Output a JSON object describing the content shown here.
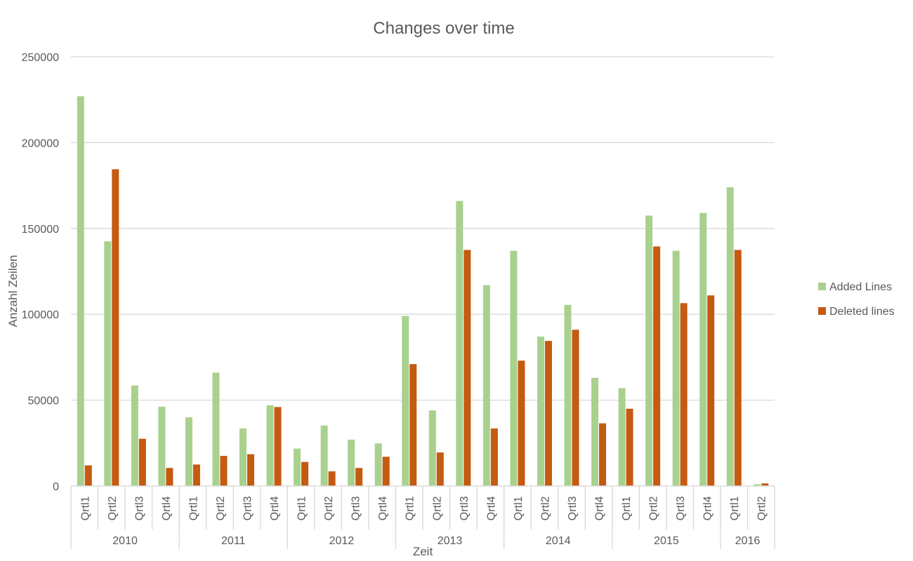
{
  "chart_data": {
    "type": "bar",
    "title": "Changes over time",
    "xlabel": "Zeit",
    "ylabel": "Anzahl Zeilen",
    "ylim": [
      0,
      250000
    ],
    "yticks": [
      0,
      50000,
      100000,
      150000,
      200000,
      250000
    ],
    "grid": true,
    "legend_position": "right",
    "years": [
      {
        "label": "2010",
        "quarters": [
          "Qrtl1",
          "Qrtl2",
          "Qrtl3",
          "Qrtl4"
        ]
      },
      {
        "label": "2011",
        "quarters": [
          "Qrtl1",
          "Qrtl2",
          "Qrtl3",
          "Qrtl4"
        ]
      },
      {
        "label": "2012",
        "quarters": [
          "Qrtl1",
          "Qrtl2",
          "Qrtl3",
          "Qrtl4"
        ]
      },
      {
        "label": "2013",
        "quarters": [
          "Qrtl1",
          "Qrtl2",
          "Qrtl3",
          "Qrtl4"
        ]
      },
      {
        "label": "2014",
        "quarters": [
          "Qrtl1",
          "Qrtl2",
          "Qrtl3",
          "Qrtl4"
        ]
      },
      {
        "label": "2015",
        "quarters": [
          "Qrtl1",
          "Qrtl2",
          "Qrtl3",
          "Qrtl4"
        ]
      },
      {
        "label": "2016",
        "quarters": [
          "Qrtl1",
          "Qrtl2"
        ]
      }
    ],
    "series": [
      {
        "name": "Added Lines",
        "color": "#a9d18e",
        "values": [
          227000,
          142500,
          58500,
          46200,
          40000,
          66000,
          33500,
          47000,
          21800,
          35200,
          27000,
          24800,
          99000,
          44000,
          166000,
          117000,
          137000,
          87000,
          105500,
          63000,
          57000,
          157500,
          137000,
          159000,
          174000,
          1000
        ]
      },
      {
        "name": "Deleted lines",
        "color": "#c55a11",
        "values": [
          12000,
          184500,
          27500,
          10500,
          12500,
          17500,
          18500,
          46000,
          14000,
          8500,
          10500,
          17000,
          71000,
          19500,
          137500,
          33500,
          73000,
          84500,
          91000,
          36500,
          45000,
          139500,
          106500,
          111000,
          137500,
          1500
        ]
      }
    ]
  }
}
